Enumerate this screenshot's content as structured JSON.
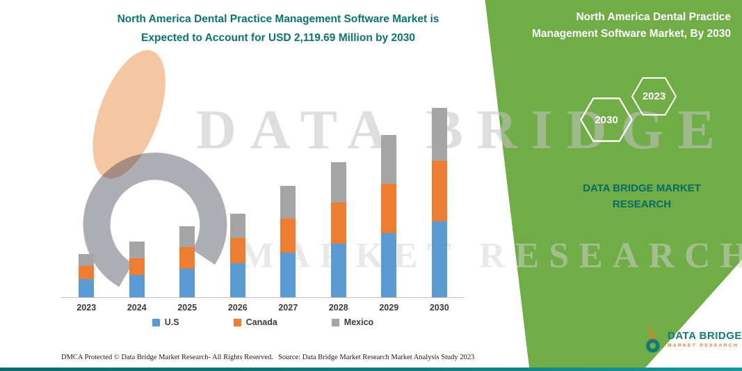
{
  "page": {
    "background": "#ffffff",
    "accent_teal": "#0E7C7B",
    "panel_green": "#70AD47"
  },
  "header": {
    "title_line1": "North America Dental Practice Management Software Market is",
    "title_line2": "Expected to Account for USD 2,119.69 Million by 2030"
  },
  "chart_data": {
    "type": "bar",
    "stacked": true,
    "title": "North America Dental Practice Management Software Market is Expected to Account for USD 2,119.69 Million by 2030",
    "unit": "USD Million",
    "categories": [
      "2023",
      "2024",
      "2025",
      "2026",
      "2027",
      "2028",
      "2029",
      "2030"
    ],
    "series": [
      {
        "name": "U.S",
        "color": "#5B9BD5",
        "values": [
          200,
          250,
          320,
          380,
          500,
          600,
          720,
          850
        ]
      },
      {
        "name": "Canada",
        "color": "#ED7D31",
        "values": [
          150,
          190,
          240,
          280,
          380,
          460,
          550,
          680
        ]
      },
      {
        "name": "Mexico",
        "color": "#A5A5A5",
        "values": [
          130,
          180,
          235,
          276,
          368,
          453,
          547,
          589.69
        ]
      }
    ],
    "totals_estimated": [
      480,
      620,
      795,
      936,
      1248,
      1513,
      1817,
      2119.69
    ],
    "stated_total_2030": 2119.69,
    "xlabel": "",
    "ylabel": "",
    "ylim": [
      0,
      2200
    ],
    "grid": false,
    "legend_position": "bottom"
  },
  "panel": {
    "heading": "North America Dental Practice Management Software Market, By 2030",
    "hexagons": [
      {
        "label": "2030"
      },
      {
        "label": "2023"
      }
    ],
    "brand_line": "DATA BRIDGE MARKET RESEARCH"
  },
  "watermark": {
    "line1": "DATA BRIDGE",
    "line2": "MARKET RESEARCH"
  },
  "footer": {
    "dmca": "DMCA Protected © Data Bridge Market Research-  All Rights Reserved.",
    "source": "Source: Data Bridge Market Research  Market Analysis Study 2023",
    "logo_title": "DATA BRIDGE",
    "logo_subtitle": "MARKET RESEARCH"
  }
}
